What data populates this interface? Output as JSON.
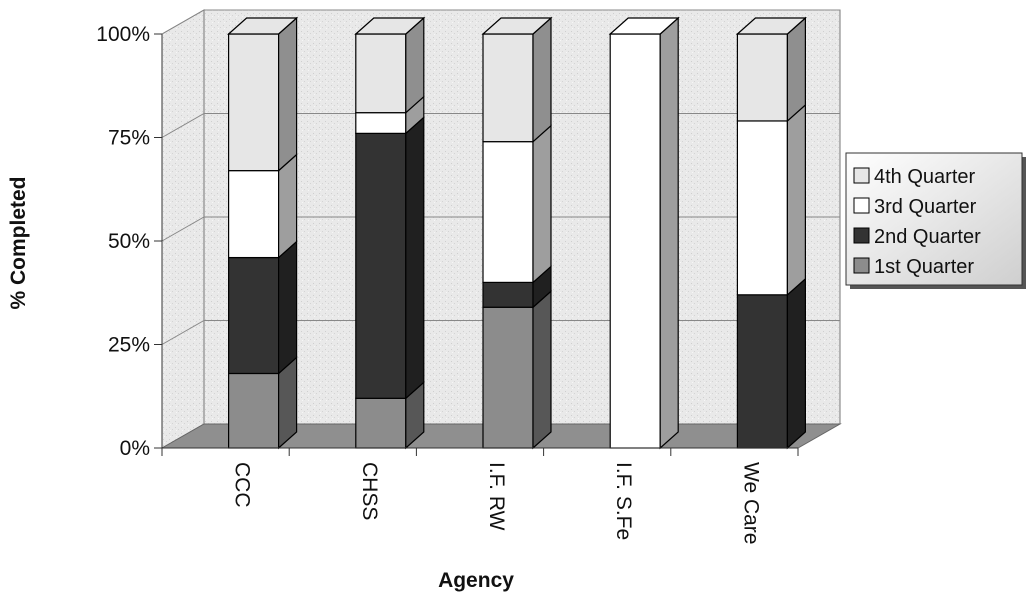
{
  "chart_data": {
    "type": "bar",
    "stacked": true,
    "style": "3d",
    "xlabel": "Agency",
    "ylabel": "% Completed",
    "ylim": [
      0,
      100
    ],
    "yticks": [
      "0%",
      "25%",
      "50%",
      "75%",
      "100%"
    ],
    "categories": [
      "CCC",
      "CHSS",
      "I.F. RW",
      "I.F. S.Fe",
      "We Care"
    ],
    "series": [
      {
        "name": "1st Quarter",
        "color": "#8c8c8c",
        "values": [
          18,
          12,
          34,
          0,
          0
        ]
      },
      {
        "name": "2nd Quarter",
        "color": "#333333",
        "values": [
          28,
          64,
          6,
          0,
          37
        ]
      },
      {
        "name": "3rd Quarter",
        "color": "#ffffff",
        "values": [
          21,
          5,
          34,
          100,
          42
        ]
      },
      {
        "name": "4th Quarter",
        "color": "#e6e6e6",
        "values": [
          33,
          19,
          26,
          0,
          21
        ]
      }
    ],
    "legend": {
      "position": "right",
      "order": [
        "4th Quarter",
        "3rd Quarter",
        "2nd Quarter",
        "1st Quarter"
      ]
    },
    "grid": true
  }
}
